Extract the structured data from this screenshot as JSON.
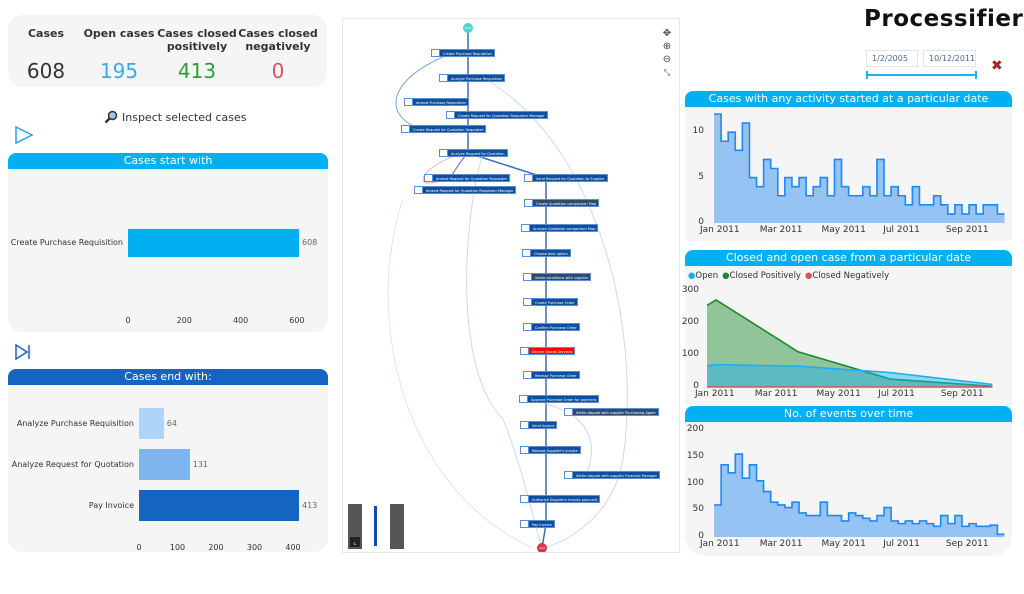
{
  "kpis": {
    "cases": {
      "label": "Cases",
      "value": "608",
      "color": "#222222"
    },
    "open": {
      "label": "Open cases",
      "value": "195",
      "color": "#3aa8f0"
    },
    "pos": {
      "label": "Cases closed positively",
      "value": "413",
      "color": "#2e9a3a"
    },
    "neg": {
      "label": "Cases closed negatively",
      "value": "0",
      "color": "#e05060"
    }
  },
  "inspect": {
    "label": "Inspect selected cases",
    "icon": "magnifier-icon"
  },
  "logo": "Processifier",
  "date_filter": {
    "from": "1/2/2005",
    "to": "10/12/2011"
  },
  "colors": {
    "accent": "#00b0f0",
    "dark_blue": "#1565c0",
    "close": "#a0281e"
  },
  "chart_data": [
    {
      "type": "bar",
      "title": "Cases start with",
      "orientation": "horizontal",
      "categories": [
        "Create Purchase Requisition"
      ],
      "values": [
        608
      ],
      "xlim": [
        0,
        608
      ],
      "xticks": [
        "0",
        "200",
        "400",
        "600"
      ],
      "colors": [
        "#00b0f0"
      ]
    },
    {
      "type": "bar",
      "title": "Cases end with:",
      "orientation": "horizontal",
      "categories": [
        "Analyze Purchase Requisition",
        "Analyze Request for Quotation",
        "Pay Invoice"
      ],
      "values": [
        64,
        131,
        413
      ],
      "xlim": [
        0,
        413
      ],
      "xticks": [
        "0",
        "100",
        "200",
        "300",
        "400"
      ],
      "colors": [
        "#aed4fb",
        "#7fb5ef",
        "#1565c0"
      ]
    },
    {
      "type": "area",
      "title": "Cases with any activity started at a particular date",
      "ylim": [
        0,
        12
      ],
      "yticks": [
        "0",
        "5",
        "10"
      ],
      "xticks": [
        "Jan 2011",
        "Mar 2011",
        "May 2011",
        "Jul 2011",
        "Sep 2011"
      ],
      "x": [
        "2011-01-03",
        "2011-01-10",
        "2011-01-17",
        "2011-01-24",
        "2011-01-31",
        "2011-02-07",
        "2011-02-14",
        "2011-02-21",
        "2011-02-28",
        "2011-03-07",
        "2011-03-14",
        "2011-03-21",
        "2011-03-28",
        "2011-04-04",
        "2011-04-11",
        "2011-04-18",
        "2011-04-25",
        "2011-05-02",
        "2011-05-09",
        "2011-05-16",
        "2011-05-23",
        "2011-05-30",
        "2011-06-06",
        "2011-06-13",
        "2011-06-20",
        "2011-06-27",
        "2011-07-04",
        "2011-07-11",
        "2011-07-18",
        "2011-07-25",
        "2011-08-01",
        "2011-08-08",
        "2011-08-15",
        "2011-08-22",
        "2011-08-29",
        "2011-09-05",
        "2011-09-12",
        "2011-09-19",
        "2011-09-26",
        "2011-10-03",
        "2011-10-10"
      ],
      "series": [
        {
          "values": [
            12,
            9,
            10,
            8,
            11,
            5,
            4,
            7,
            6,
            3,
            5,
            4,
            5,
            3,
            4,
            5,
            3,
            7,
            4,
            3,
            3,
            4,
            3,
            7,
            3,
            4,
            3,
            2,
            4,
            2,
            2,
            3,
            2,
            1,
            2,
            1,
            2,
            1,
            2,
            2,
            1
          ],
          "color": "#1e88f5"
        }
      ]
    },
    {
      "type": "area",
      "title": "Closed and open case from a particular date",
      "ylim": [
        0,
        300
      ],
      "yticks": [
        "0",
        "100",
        "200",
        "300"
      ],
      "xticks": [
        "Jan 2011",
        "Mar 2011",
        "May 2011",
        "Jul 2011",
        "Sep 2011"
      ],
      "legend": "top-left",
      "x": [
        "2011-01-01",
        "2011-01-10",
        "2011-04-01",
        "2011-07-01",
        "2011-10-10"
      ],
      "series": [
        {
          "name": "Open",
          "values": [
            65,
            70,
            65,
            45,
            8
          ],
          "color": "#1ab0f0"
        },
        {
          "name": "Closed Positively",
          "values": [
            255,
            272,
            110,
            25,
            2
          ],
          "color": "#1a8a2a"
        },
        {
          "name": "Closed Negatively",
          "values": [
            0,
            0,
            0,
            0,
            0
          ],
          "color": "#e0505a"
        }
      ]
    },
    {
      "type": "area",
      "title": "No. of events over time",
      "ylim": [
        0,
        200
      ],
      "yticks": [
        "0",
        "50",
        "100",
        "150",
        "200"
      ],
      "xticks": [
        "Jan 2011",
        "Mar 2011",
        "May 2011",
        "Jul 2011",
        "Sep 2011"
      ],
      "x": [
        "2011-01-03",
        "2011-01-10",
        "2011-01-17",
        "2011-01-24",
        "2011-01-31",
        "2011-02-07",
        "2011-02-14",
        "2011-02-21",
        "2011-02-28",
        "2011-03-07",
        "2011-03-14",
        "2011-03-21",
        "2011-03-28",
        "2011-04-04",
        "2011-04-11",
        "2011-04-18",
        "2011-04-25",
        "2011-05-02",
        "2011-05-09",
        "2011-05-16",
        "2011-05-23",
        "2011-05-30",
        "2011-06-06",
        "2011-06-13",
        "2011-06-20",
        "2011-06-27",
        "2011-07-04",
        "2011-07-11",
        "2011-07-18",
        "2011-07-25",
        "2011-08-01",
        "2011-08-08",
        "2011-08-15",
        "2011-08-22",
        "2011-08-29",
        "2011-09-05",
        "2011-09-12",
        "2011-09-19",
        "2011-09-26",
        "2011-10-03",
        "2011-10-10"
      ],
      "series": [
        {
          "values": [
            60,
            135,
            120,
            155,
            110,
            135,
            105,
            85,
            65,
            60,
            55,
            65,
            45,
            40,
            40,
            65,
            40,
            40,
            30,
            45,
            40,
            35,
            30,
            40,
            55,
            30,
            25,
            30,
            25,
            30,
            25,
            20,
            40,
            25,
            40,
            20,
            25,
            20,
            20,
            22,
            5
          ],
          "color": "#1e88f5"
        }
      ]
    }
  ],
  "process_map": {
    "start": "start",
    "end": "end",
    "nodes": [
      "Create Purchase Requisition",
      "Analyze Purchase Requisition",
      "Amend Purchase Requisition",
      "Create Request for Quotation Requester Manager",
      "Create Request for Quotation Requester",
      "Analyze Request for Quotation",
      "Amend Request for Quotation Requester",
      "Amend Request for Quotation Requester Manager",
      "Send Request for Quotation to Supplier",
      "Create Quotation comparison Map",
      "Analyze Quotation comparison Map",
      "Choose best option",
      "Settle conditions with supplier",
      "Create Purchase Order",
      "Confirm Purchase Order",
      "Deliver Goods Services",
      "Release Purchase Order",
      "Approve Purchase Order for payment",
      "Settle dispute with supplier Purchasing Agent",
      "Send Invoice",
      "Release Supplier's Invoice",
      "Settle dispute with supplier Financial Manager",
      "Authorize Supplier's Invoice payment",
      "Pay Invoice"
    ],
    "controls": [
      "pan-icon",
      "zoom-in-icon",
      "zoom-out-icon",
      "fit-icon"
    ]
  }
}
